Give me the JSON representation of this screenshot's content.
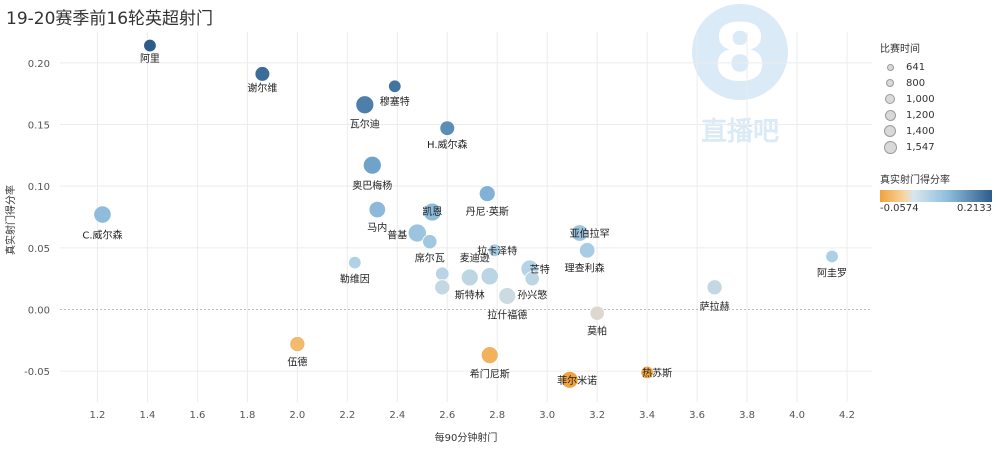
{
  "title": "19-20赛季前16轮英超射门",
  "watermark": {
    "digit": "8",
    "text": "直播吧"
  },
  "legend": {
    "size_title": "比赛时间",
    "size_entries": [
      "641",
      "800",
      "1,000",
      "1,200",
      "1,400",
      "1,547"
    ],
    "color_title": "真实射门得分率",
    "color_min": "-0.0574",
    "color_max": "0.2133",
    "color_low": "#f0a23c",
    "color_high": "#2d5c8c"
  },
  "chart_data": {
    "type": "scatter",
    "title": "19-20赛季前16轮英超射门",
    "xlabel": "每90分钟射门",
    "ylabel": "真实射门得分率",
    "xlim": [
      1.05,
      4.3
    ],
    "ylim": [
      -0.075,
      0.225
    ],
    "xticks": [
      1.2,
      1.4,
      1.6,
      1.8,
      2.0,
      2.2,
      2.4,
      2.6,
      2.8,
      3.0,
      3.2,
      3.4,
      3.6,
      3.8,
      4.0,
      4.2
    ],
    "xtick_labels": [
      "1.2",
      "1.4",
      "1.6",
      "1.8",
      "2.0",
      "2.2",
      "2.4",
      "2.6",
      "2.8",
      "3.0",
      "3.2",
      "3.4",
      "3.6",
      "3.8",
      "4.0",
      "4.2"
    ],
    "yticks": [
      -0.05,
      0.0,
      0.05,
      0.1,
      0.15,
      0.2
    ],
    "ytick_labels": [
      "-0.05",
      "0.00",
      "0.05",
      "0.10",
      "0.15",
      "0.20"
    ],
    "grid": true,
    "size_encoding": "比赛时间",
    "color_encoding": "真实射门得分率",
    "points": [
      {
        "name": "阿里",
        "x": 1.41,
        "y": 0.214,
        "minutes": 700,
        "show_label": true
      },
      {
        "name": "谢尔维",
        "x": 1.86,
        "y": 0.191,
        "minutes": 950,
        "show_label": true
      },
      {
        "name": "穆塞特",
        "x": 2.39,
        "y": 0.181,
        "minutes": 700,
        "show_label": true
      },
      {
        "name": "瓦尔迪",
        "x": 2.27,
        "y": 0.166,
        "minutes": 1400,
        "show_label": true
      },
      {
        "name": "H.威尔森",
        "x": 2.6,
        "y": 0.147,
        "minutes": 950,
        "show_label": true
      },
      {
        "name": "奥巴梅杨",
        "x": 2.3,
        "y": 0.117,
        "minutes": 1400,
        "show_label": true
      },
      {
        "name": "丹尼·英斯",
        "x": 2.76,
        "y": 0.094,
        "minutes": 1100,
        "show_label": true
      },
      {
        "name": "C.威尔森",
        "x": 1.22,
        "y": 0.077,
        "minutes": 1300,
        "show_label": true
      },
      {
        "name": "马内",
        "x": 2.32,
        "y": 0.081,
        "minutes": 1200,
        "show_label": true
      },
      {
        "name": "凯恩",
        "x": 2.54,
        "y": 0.079,
        "minutes": 1400,
        "show_label": true
      },
      {
        "name": "普基",
        "x": 2.48,
        "y": 0.062,
        "minutes": 1450,
        "show_label": true
      },
      {
        "name": "亚伯拉罕",
        "x": 3.13,
        "y": 0.062,
        "minutes": 1200,
        "show_label": true
      },
      {
        "name": "",
        "x": 2.53,
        "y": 0.055,
        "minutes": 900,
        "show_label": false
      },
      {
        "name": "拉卡泽特",
        "x": 2.79,
        "y": 0.048,
        "minutes": 700,
        "show_label": true
      },
      {
        "name": "理查利森",
        "x": 3.16,
        "y": 0.048,
        "minutes": 1050,
        "show_label": true
      },
      {
        "name": "阿圭罗",
        "x": 4.14,
        "y": 0.043,
        "minutes": 700,
        "show_label": true
      },
      {
        "name": "勒维因",
        "x": 2.23,
        "y": 0.038,
        "minutes": 700,
        "show_label": true
      },
      {
        "name": "芒特",
        "x": 2.93,
        "y": 0.033,
        "minutes": 1350,
        "show_label": true
      },
      {
        "name": "",
        "x": 2.58,
        "y": 0.029,
        "minutes": 800,
        "show_label": false
      },
      {
        "name": "",
        "x": 2.69,
        "y": 0.026,
        "minutes": 1250,
        "show_label": false
      },
      {
        "name": "",
        "x": 2.77,
        "y": 0.027,
        "minutes": 1300,
        "show_label": false
      },
      {
        "name": "",
        "x": 2.94,
        "y": 0.025,
        "minutes": 900,
        "show_label": false
      },
      {
        "name": "",
        "x": 2.58,
        "y": 0.018,
        "minutes": 1000,
        "show_label": false
      },
      {
        "name": "萨拉赫",
        "x": 3.67,
        "y": 0.018,
        "minutes": 1000,
        "show_label": true
      },
      {
        "name": "",
        "x": 2.84,
        "y": 0.011,
        "minutes": 1250,
        "show_label": false
      },
      {
        "name": "莫帕",
        "x": 3.2,
        "y": -0.003,
        "minutes": 900,
        "show_label": true
      },
      {
        "name": "伍德",
        "x": 2.0,
        "y": -0.028,
        "minutes": 1000,
        "show_label": true
      },
      {
        "name": "希门尼斯",
        "x": 2.77,
        "y": -0.037,
        "minutes": 1250,
        "show_label": true
      },
      {
        "name": "热苏斯",
        "x": 3.4,
        "y": -0.051,
        "minutes": 700,
        "show_label": true
      },
      {
        "name": "菲尔米诺",
        "x": 3.09,
        "y": -0.057,
        "minutes": 1250,
        "show_label": true
      }
    ],
    "labels": [
      {
        "text": "阿里",
        "lx": 1.41,
        "ly": 0.204
      },
      {
        "text": "谢尔维",
        "lx": 1.86,
        "ly": 0.18
      },
      {
        "text": "穆塞特",
        "lx": 2.39,
        "ly": 0.169
      },
      {
        "text": "瓦尔迪",
        "lx": 2.27,
        "ly": 0.151
      },
      {
        "text": "H.威尔森",
        "lx": 2.6,
        "ly": 0.134
      },
      {
        "text": "奥巴梅杨",
        "lx": 2.3,
        "ly": 0.101
      },
      {
        "text": "丹尼·英斯",
        "lx": 2.76,
        "ly": 0.08
      },
      {
        "text": "C.威尔森",
        "lx": 1.22,
        "ly": 0.061
      },
      {
        "text": "马内",
        "lx": 2.32,
        "ly": 0.067
      },
      {
        "text": "凯恩",
        "lx": 2.54,
        "ly": 0.08
      },
      {
        "text": "普基",
        "lx": 2.4,
        "ly": 0.061
      },
      {
        "text": "亚伯拉罕",
        "lx": 3.17,
        "ly": 0.062
      },
      {
        "text": "拉卡泽特",
        "lx": 2.8,
        "ly": 0.048
      },
      {
        "text": "理查利森",
        "lx": 3.15,
        "ly": 0.034
      },
      {
        "text": "阿圭罗",
        "lx": 4.14,
        "ly": 0.03
      },
      {
        "text": "勒维因",
        "lx": 2.23,
        "ly": 0.025
      },
      {
        "text": "芒特",
        "lx": 2.97,
        "ly": 0.033
      },
      {
        "text": "席尔瓦",
        "lx": 2.53,
        "ly": 0.042
      },
      {
        "text": "麦迪逊",
        "lx": 2.71,
        "ly": 0.042
      },
      {
        "text": "斯特林",
        "lx": 2.69,
        "ly": 0.012
      },
      {
        "text": "孙兴慜",
        "lx": 2.94,
        "ly": 0.012
      },
      {
        "text": "萨拉赫",
        "lx": 3.67,
        "ly": 0.003
      },
      {
        "text": "拉什福德",
        "lx": 2.84,
        "ly": -0.004
      },
      {
        "text": "莫帕",
        "lx": 3.2,
        "ly": -0.017
      },
      {
        "text": "伍德",
        "lx": 2.0,
        "ly": -0.042
      },
      {
        "text": "希门尼斯",
        "lx": 2.77,
        "ly": -0.052
      },
      {
        "text": "热苏斯",
        "lx": 3.44,
        "ly": -0.051
      },
      {
        "text": "菲尔米诺",
        "lx": 3.12,
        "ly": -0.057
      }
    ]
  }
}
